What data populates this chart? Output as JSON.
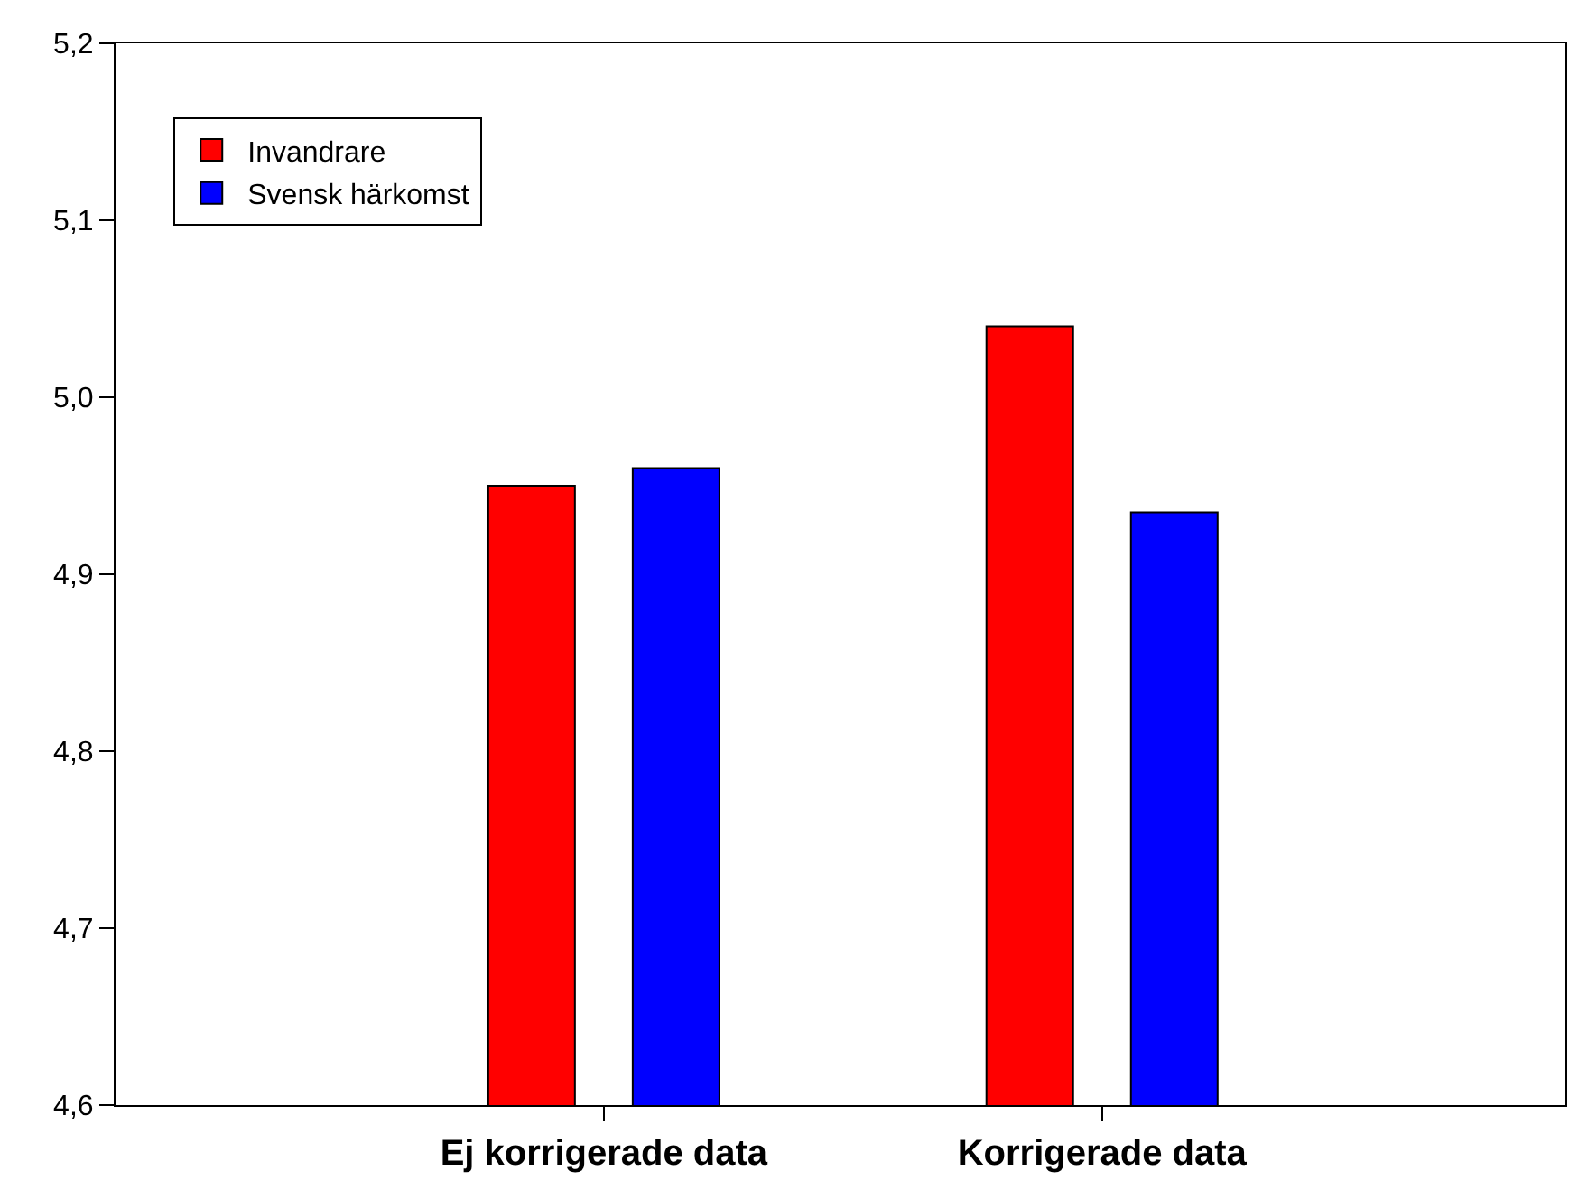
{
  "chart_data": {
    "type": "bar",
    "categories": [
      "Ej korrigerade data",
      "Korrigerade data"
    ],
    "series": [
      {
        "name": "Invandrare",
        "color": "#ff0000",
        "values": [
          4.95,
          5.04
        ]
      },
      {
        "name": "Svensk härkomst",
        "color": "#0000ff",
        "values": [
          4.96,
          4.935
        ]
      }
    ],
    "ylim": [
      4.6,
      5.2
    ],
    "yticks": [
      {
        "value": 4.6,
        "label": "4,6"
      },
      {
        "value": 4.7,
        "label": "4,7"
      },
      {
        "value": 4.8,
        "label": "4,8"
      },
      {
        "value": 4.9,
        "label": "4,9"
      },
      {
        "value": 5.0,
        "label": "5,0"
      },
      {
        "value": 5.1,
        "label": "5,1"
      },
      {
        "value": 5.2,
        "label": "5,2"
      }
    ],
    "grid": false,
    "legend": "top left"
  }
}
